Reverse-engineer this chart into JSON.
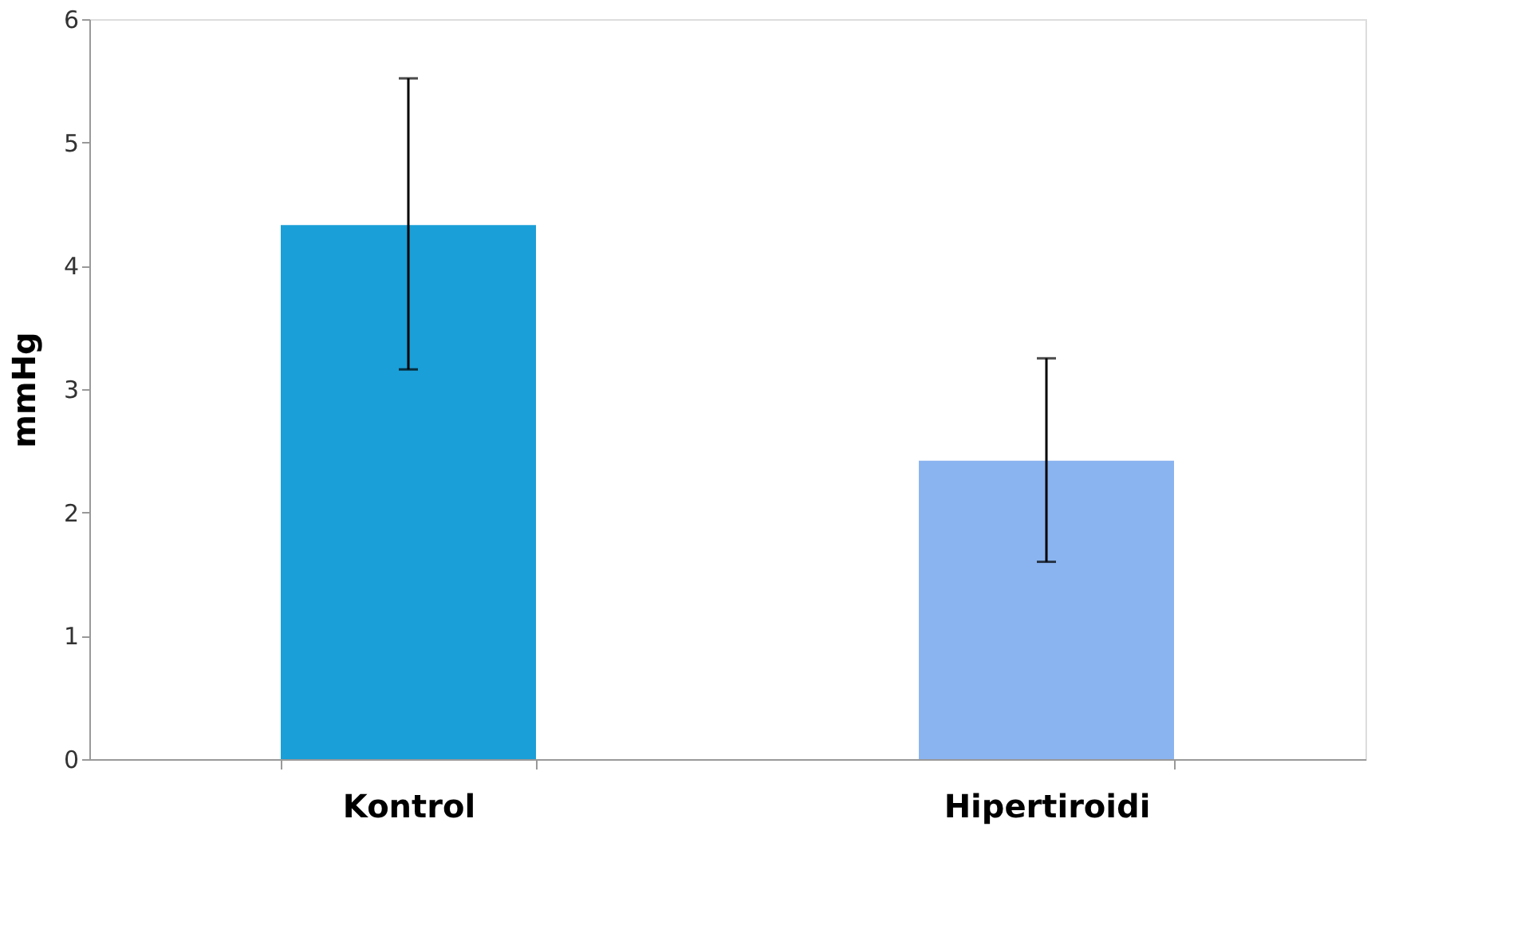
{
  "chart_data": {
    "type": "bar",
    "ylabel": "mmHg",
    "categories": [
      "Kontrol",
      "Hipertiroidi"
    ],
    "values": [
      4.33,
      2.42
    ],
    "colors": [
      "#1a9fd8",
      "#8ab4f0"
    ],
    "errors": [
      [
        3.16,
        5.52
      ],
      [
        1.6,
        3.25
      ]
    ],
    "ylim": [
      0,
      6
    ],
    "yticks": [
      0,
      1,
      2,
      3,
      4,
      5,
      6
    ],
    "grid": false
  }
}
